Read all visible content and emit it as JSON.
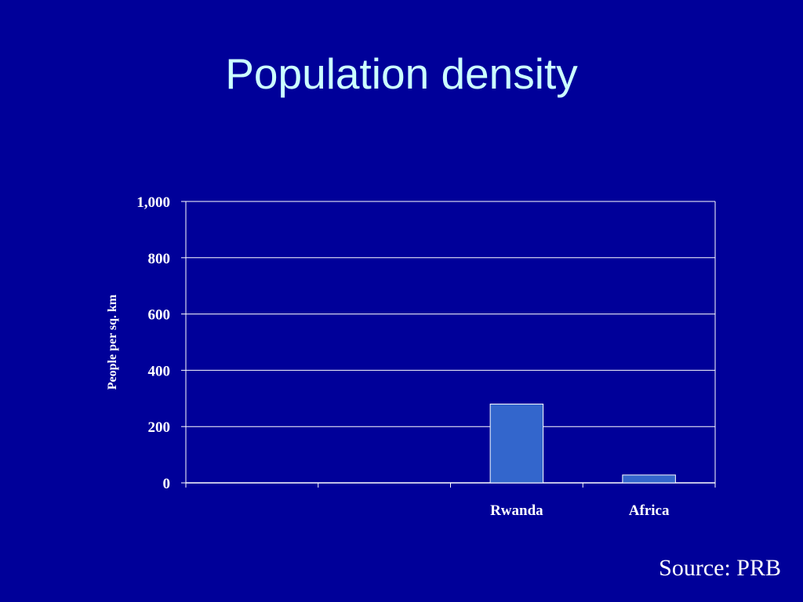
{
  "slide": {
    "title": "Population density",
    "source": "Source: PRB"
  },
  "colors": {
    "background": "#000099",
    "title": "#ccffff",
    "bar": "#3366cc",
    "axis": "#ffffff"
  },
  "chart_data": {
    "type": "bar",
    "categories": [
      "",
      "",
      "Rwanda",
      "Africa"
    ],
    "values": [
      null,
      null,
      280,
      28
    ],
    "ylabel": "People per sq. km",
    "ylim": [
      0,
      1000
    ],
    "yticks": [
      0,
      200,
      400,
      600,
      800,
      1000
    ],
    "ytick_labels": [
      "0",
      "200",
      "400",
      "600",
      "800",
      "1,000"
    ],
    "grid": true,
    "legend": "none"
  }
}
